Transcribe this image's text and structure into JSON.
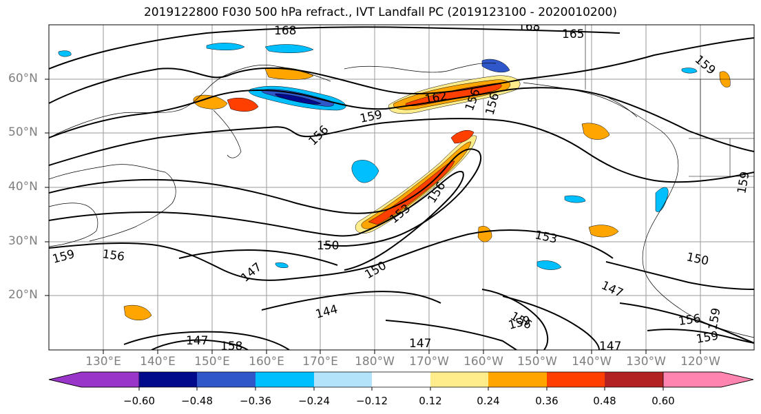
{
  "title": "2019122800 F030 500 hPa refract., IVT Landfall PC (2019123100 - 2020010200)",
  "latitude_labels": [
    "60°N",
    "50°N",
    "40°N",
    "30°N",
    "20°N"
  ],
  "longitude_labels": [
    "130°E",
    "140°E",
    "150°E",
    "160°E",
    "170°E",
    "180°W",
    "170°W",
    "160°W",
    "150°W",
    "140°W",
    "130°W",
    "120°W"
  ],
  "contour_labels": [
    "168",
    "168",
    "165",
    "159",
    "159",
    "162",
    "156",
    "156",
    "156",
    "153",
    "156",
    "150",
    "147",
    "150",
    "153",
    "150",
    "147",
    "156",
    "159",
    "144",
    "147",
    "147",
    "156",
    "159",
    "156",
    "159",
    "147",
    "158",
    "159",
    "159"
  ],
  "colorbar": {
    "tick_labels": [
      "−0.60",
      "−0.48",
      "−0.36",
      "−0.24",
      "−0.12",
      "0.12",
      "0.24",
      "0.36",
      "0.48",
      "0.60"
    ],
    "colors": [
      "#9a35c9",
      "#000a8b",
      "#2f57c9",
      "#00bfff",
      "#b2e3fb",
      "#ffffff",
      "#ffec8b",
      "#ffa500",
      "#ff3f00",
      "#b22222",
      "#ff85b0"
    ]
  }
}
